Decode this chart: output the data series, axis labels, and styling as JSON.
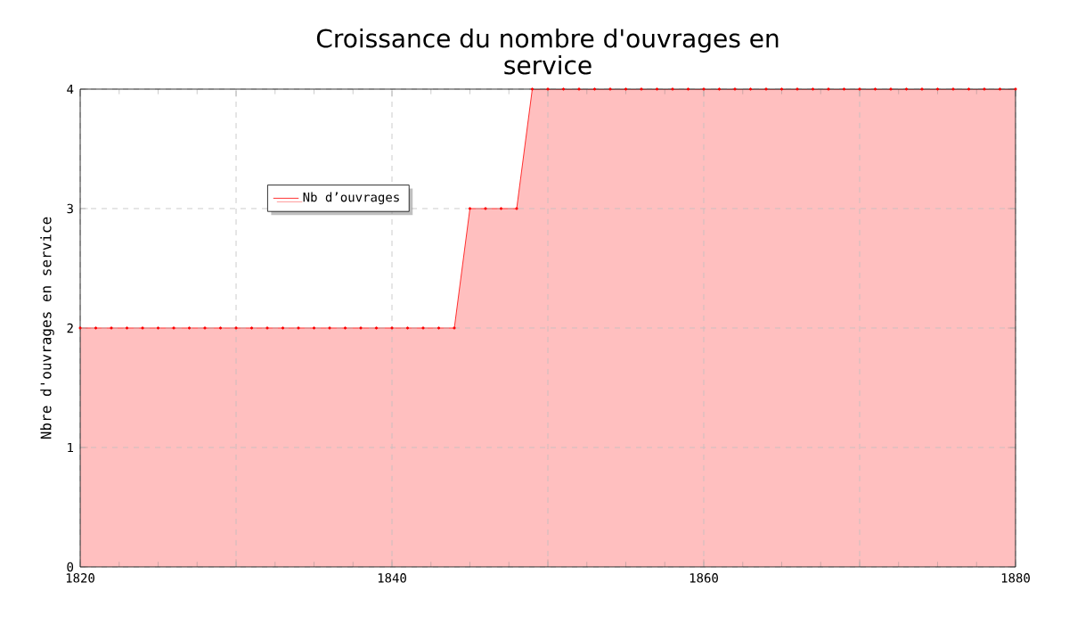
{
  "chart_data": {
    "type": "area",
    "title": "Croissance du nombre d'ouvrages en service",
    "ylabel": "Nbre d'ouvrages en service",
    "x": [
      1820,
      1821,
      1822,
      1823,
      1824,
      1825,
      1826,
      1827,
      1828,
      1829,
      1830,
      1831,
      1832,
      1833,
      1834,
      1835,
      1836,
      1837,
      1838,
      1839,
      1840,
      1841,
      1842,
      1843,
      1844,
      1845,
      1846,
      1847,
      1848,
      1849,
      1850,
      1851,
      1852,
      1853,
      1854,
      1855,
      1856,
      1857,
      1858,
      1859,
      1860,
      1861,
      1862,
      1863,
      1864,
      1865,
      1866,
      1867,
      1868,
      1869,
      1870,
      1871,
      1872,
      1873,
      1874,
      1875,
      1876,
      1877,
      1878,
      1879,
      1880
    ],
    "series": [
      {
        "name": "Nb d’ouvrages",
        "color": "#ff0000",
        "values": [
          2,
          2,
          2,
          2,
          2,
          2,
          2,
          2,
          2,
          2,
          2,
          2,
          2,
          2,
          2,
          2,
          2,
          2,
          2,
          2,
          2,
          2,
          2,
          2,
          2,
          3,
          3,
          3,
          3,
          4,
          4,
          4,
          4,
          4,
          4,
          4,
          4,
          4,
          4,
          4,
          4,
          4,
          4,
          4,
          4,
          4,
          4,
          4,
          4,
          4,
          4,
          4,
          4,
          4,
          4,
          4,
          4,
          4,
          4,
          4,
          4
        ]
      }
    ],
    "xlim": [
      1820,
      1880
    ],
    "ylim": [
      0,
      4
    ],
    "xticks": [
      1820,
      {
        "value": 1830,
        "label": null
      },
      1840,
      {
        "value": 1850,
        "label": null
      },
      1860,
      {
        "value": 1870,
        "label": null
      },
      1880
    ],
    "yticks": [
      0,
      1,
      2,
      3,
      4
    ],
    "grid": true,
    "legend": "top left",
    "marker": "circle",
    "line_style": "solid"
  }
}
